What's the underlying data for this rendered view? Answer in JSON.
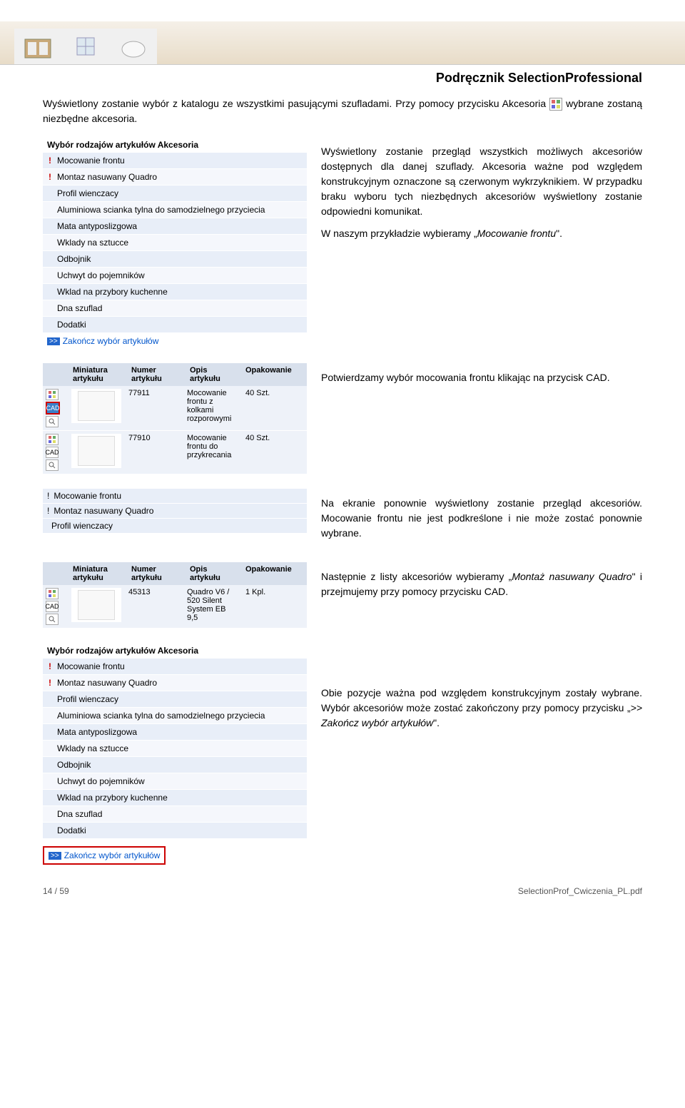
{
  "header": {
    "title": "Podręcznik SelectionProfessional"
  },
  "intro": {
    "line1_a": "Wyświetlony zostanie wybór z katalogu ze wszystkimi pasującymi szufladami. Przy pomocy przycisku Akcesoria ",
    "line1_b": " wybrane zostaną niezbędne akcesoria."
  },
  "panel1": {
    "title": "Wybór rodzajów artykułów Akcesoria",
    "items": [
      {
        "mark": "!",
        "label": "Mocowanie frontu"
      },
      {
        "mark": "!",
        "label": "Montaz nasuwany Quadro"
      },
      {
        "mark": "",
        "label": "Profil wienczacy"
      },
      {
        "mark": "",
        "label": "Aluminiowa scianka tylna do samodzielnego przyciecia"
      },
      {
        "mark": "",
        "label": "Mata antyposlizgowa"
      },
      {
        "mark": "",
        "label": "Wklady na sztucce"
      },
      {
        "mark": "",
        "label": "Odbojnik"
      },
      {
        "mark": "",
        "label": "Uchwyt do pojemników"
      },
      {
        "mark": "",
        "label": "Wklad na przybory kuchenne"
      },
      {
        "mark": "",
        "label": "Dna szuflad"
      },
      {
        "mark": "",
        "label": "Dodatki"
      }
    ],
    "finish": "Zakończ wybór artykułów"
  },
  "para1": {
    "text": "Wyświetlony zostanie przegląd wszystkich możliwych akcesoriów dostępnych dla danej szuflady. Akcesoria ważne pod względem konstrukcyjnym oznaczone są czerwonym wykrzyknikiem. W przypadku braku wyboru tych niezbędnych akcesoriów wyświetlony zostanie odpowiedni komunikat.",
    "text2a": "W naszym przykładzie wybieramy „",
    "text2b": "Mocowanie frontu",
    "text2c": "\"."
  },
  "table1": {
    "headers": {
      "thumb": "Miniatura artykułu",
      "num": "Numer artykułu",
      "desc": "Opis artykułu",
      "pack": "Opakowanie"
    },
    "rows": [
      {
        "num": "77911",
        "desc": "Mocowanie frontu z kolkami rozporowymi",
        "pack": "40 Szt.",
        "cad_hl": true
      },
      {
        "num": "77910",
        "desc": "Mocowanie frontu do przykrecania",
        "pack": "40 Szt.",
        "cad_hl": false
      }
    ]
  },
  "para2": "Potwierdzamy wybór mocowania frontu klikając na przycisk CAD.",
  "shortList": {
    "items": [
      {
        "mark": "!",
        "label": "Mocowanie frontu"
      },
      {
        "mark": "!",
        "label": "Montaz nasuwany Quadro"
      },
      {
        "mark": "",
        "label": "Profil wienczacy"
      }
    ]
  },
  "para3": "Na ekranie ponownie wyświetlony zostanie przegląd akcesoriów. Mocowanie frontu nie jest podkreślone i nie może zostać ponownie wybrane.",
  "table2": {
    "headers": {
      "thumb": "Miniatura artykułu",
      "num": "Numer artykułu",
      "desc": "Opis artykułu",
      "pack": "Opakowanie"
    },
    "rows": [
      {
        "num": "45313",
        "desc": "Quadro V6 / 520 Silent System EB 9,5",
        "pack": "1 Kpl."
      }
    ]
  },
  "para4a": "Następnie z listy akcesoriów wybieramy „",
  "para4b": "Montaż nasuwany Quadro",
  "para4c": "\" i przejmujemy przy pomocy przycisku CAD.",
  "panel2": {
    "title": "Wybór rodzajów artykułów Akcesoria",
    "items": [
      {
        "mark": "!",
        "label": "Mocowanie frontu"
      },
      {
        "mark": "!",
        "label": "Montaz nasuwany Quadro"
      },
      {
        "mark": "",
        "label": "Profil wienczacy"
      },
      {
        "mark": "",
        "label": "Aluminiowa scianka tylna do samodzielnego przyciecia"
      },
      {
        "mark": "",
        "label": "Mata antyposlizgowa"
      },
      {
        "mark": "",
        "label": "Wklady na sztucce"
      },
      {
        "mark": "",
        "label": "Odbojnik"
      },
      {
        "mark": "",
        "label": "Uchwyt do pojemników"
      },
      {
        "mark": "",
        "label": "Wklad na przybory kuchenne"
      },
      {
        "mark": "",
        "label": "Dna szuflad"
      },
      {
        "mark": "",
        "label": "Dodatki"
      }
    ],
    "finish": "Zakończ wybór artykułów"
  },
  "para5a": "Obie pozycje ważna pod względem konstrukcyjnym zostały wybrane. Wybór akcesoriów może zostać zakończony przy pomocy przycisku „",
  "para5b": ">> Zakończ wybór artykułów",
  "para5c": "\".",
  "footer": {
    "left": "14 / 59",
    "right": "SelectionProf_Cwiczenia_PL.pdf"
  },
  "colors": {
    "red": "#cc0000",
    "blue": "#0055cc",
    "rowbg": "#e8eef8"
  }
}
